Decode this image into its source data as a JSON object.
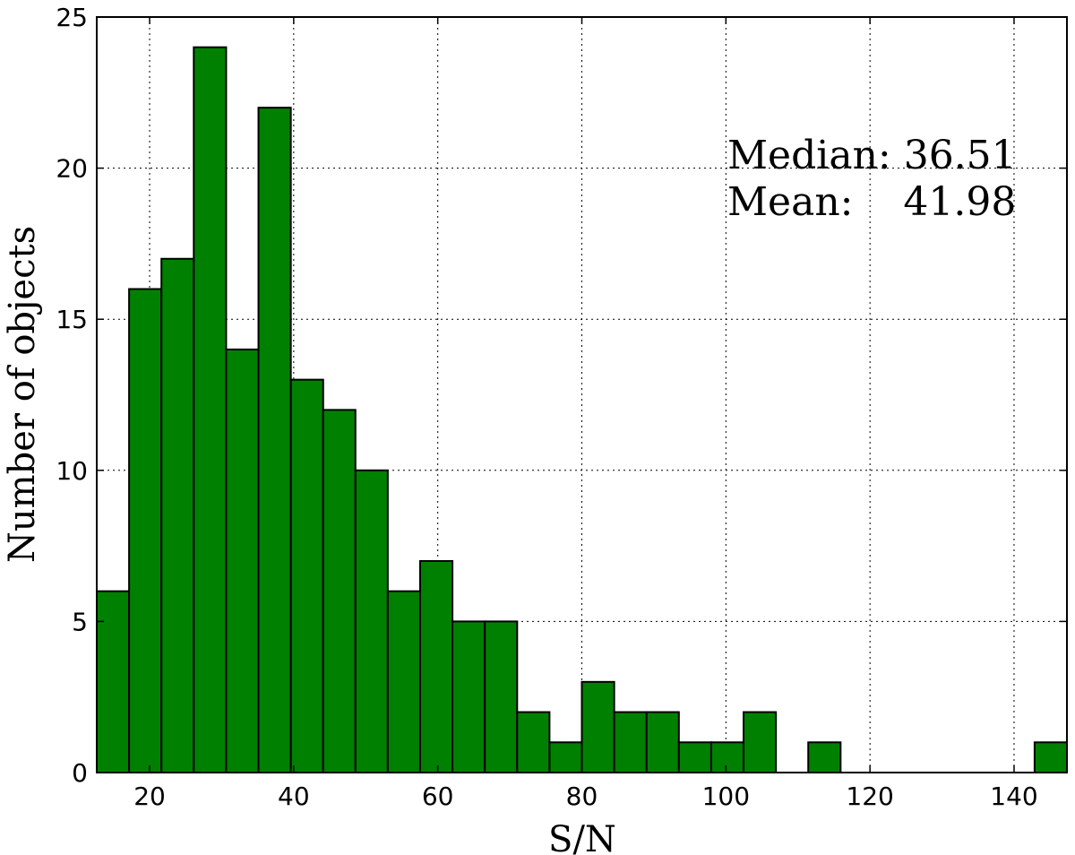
{
  "chart_data": {
    "type": "histogram",
    "xlabel": "S/N",
    "ylabel": "Number of objects",
    "annotations": [
      "Median: 36.51",
      "Mean:    41.98"
    ],
    "bins": [
      12.66,
      17.15,
      21.64,
      26.13,
      30.62,
      35.11,
      39.6,
      44.09,
      48.57,
      53.06,
      57.55,
      62.04,
      66.53,
      71.02,
      75.51,
      80.0,
      84.49,
      88.98,
      93.47,
      97.96,
      102.45,
      106.94,
      111.43,
      115.92,
      120.41,
      124.89,
      129.38,
      133.87,
      138.36,
      142.85,
      147.34
    ],
    "values": [
      6,
      16,
      17,
      24,
      14,
      22,
      13,
      12,
      10,
      6,
      7,
      5,
      5,
      2,
      1,
      3,
      2,
      2,
      1,
      1,
      2,
      0,
      1,
      0,
      0,
      0,
      0,
      0,
      0,
      1
    ],
    "color": "#008000",
    "xlim": [
      12.66,
      147.34
    ],
    "xticks": [
      20,
      40,
      60,
      80,
      100,
      120,
      140
    ],
    "ylim": [
      0,
      25
    ],
    "yticks": [
      0,
      5,
      10,
      15,
      20,
      25
    ],
    "grid": true
  }
}
